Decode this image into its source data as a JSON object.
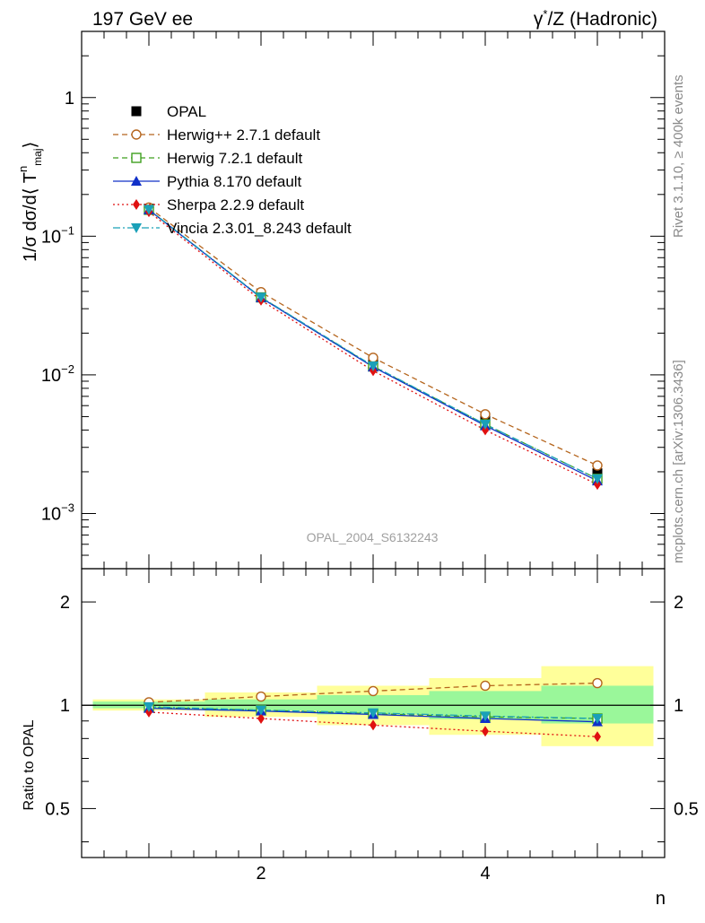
{
  "header": {
    "left": "197 GeV ee",
    "right_prefix": "γ",
    "right_sup": "*",
    "right_suffix": "/Z (Hadronic)"
  },
  "side_labels": {
    "rivet": "Rivet 3.1.10, ≥ 400k events",
    "mcplots": "mcplots.cern.ch [arXiv:1306.3436]"
  },
  "watermark": "OPAL_2004_S6132243",
  "chart_data": [
    {
      "type": "line",
      "panel": "main",
      "yscale": "log",
      "ylabel_main": "1/σ dσ/d⟨ T",
      "ylabel_sup": "n",
      "ylabel_sub": "maj",
      "ylabel_end": "⟩",
      "xlim": [
        0.4,
        5.6
      ],
      "ylim": [
        0.0004,
        3
      ],
      "ytick_labels": [
        {
          "value": 1,
          "base": "1",
          "exp": ""
        },
        {
          "value": 0.1,
          "base": "10",
          "exp": "−1"
        },
        {
          "value": 0.01,
          "base": "10",
          "exp": "−2"
        },
        {
          "value": 0.001,
          "base": "10",
          "exp": "−3"
        }
      ],
      "x": [
        1,
        2,
        3,
        4,
        5
      ],
      "data": {
        "name": "OPAL",
        "values": [
          0.158,
          0.0375,
          0.0122,
          0.0048,
          0.00195
        ],
        "errors": [
          0.003,
          0.0008,
          0.0003,
          0.00015,
          9e-05
        ]
      },
      "series": [
        {
          "name": "Herwig++ 2.7.1 default",
          "color": "#b5651d",
          "marker": "circle-open",
          "dash": "6,4",
          "values": [
            0.161,
            0.0395,
            0.0133,
            0.0052,
            0.00222
          ]
        },
        {
          "name": "Herwig 7.2.1 default",
          "color": "#3f9f1f",
          "marker": "square-open",
          "dash": "6,4",
          "values": [
            0.155,
            0.0362,
            0.0115,
            0.0044,
            0.00178
          ]
        },
        {
          "name": "Pythia 8.170 default",
          "color": "#1030c8",
          "marker": "triangle-up",
          "dash": "",
          "values": [
            0.155,
            0.036,
            0.0114,
            0.0043,
            0.00172
          ]
        },
        {
          "name": "Sherpa 2.2.9 default",
          "color": "#e01010",
          "marker": "diamond",
          "dash": "2,3",
          "values": [
            0.15,
            0.0345,
            0.0107,
            0.004,
            0.00162
          ]
        },
        {
          "name": "Vincia 2.3.01_8.243 default",
          "color": "#1aa0b8",
          "marker": "triangle-down",
          "dash": "8,3,2,3",
          "values": [
            0.156,
            0.0363,
            0.0116,
            0.0044,
            0.00178
          ]
        }
      ]
    },
    {
      "type": "line",
      "panel": "ratio",
      "yscale": "log",
      "ylabel": "Ratio to OPAL",
      "xlabel": "n",
      "xlim": [
        0.4,
        5.6
      ],
      "ylim": [
        0.36,
        2.5
      ],
      "ytick_labels": [
        {
          "value": 2,
          "label": "2"
        },
        {
          "value": 1,
          "label": "1"
        },
        {
          "value": 0.5,
          "label": "0.5"
        }
      ],
      "xtick_labels": [
        {
          "value": 2,
          "label": "2"
        },
        {
          "value": 4,
          "label": "4"
        }
      ],
      "x": [
        1,
        2,
        3,
        4,
        5
      ],
      "bands": {
        "inner": [
          [
            0.98,
            1.025
          ],
          [
            0.965,
            1.04
          ],
          [
            0.94,
            1.07
          ],
          [
            0.91,
            1.1
          ],
          [
            0.885,
            1.14
          ]
        ],
        "outer": [
          [
            0.965,
            1.04
          ],
          [
            0.925,
            1.09
          ],
          [
            0.875,
            1.14
          ],
          [
            0.82,
            1.2
          ],
          [
            0.76,
            1.3
          ]
        ]
      },
      "series": [
        {
          "name": "Herwig++ 2.7.1 default",
          "color": "#b5651d",
          "marker": "circle-open",
          "dash": "6,4",
          "values": [
            1.02,
            1.06,
            1.1,
            1.14,
            1.16
          ]
        },
        {
          "name": "Herwig 7.2.1 default",
          "color": "#3f9f1f",
          "marker": "square-open",
          "dash": "6,4",
          "values": [
            0.985,
            0.968,
            0.945,
            0.925,
            0.915
          ]
        },
        {
          "name": "Pythia 8.170 default",
          "color": "#1030c8",
          "marker": "triangle-up",
          "dash": "",
          "values": [
            0.98,
            0.962,
            0.94,
            0.915,
            0.895
          ]
        },
        {
          "name": "Sherpa 2.2.9 default",
          "color": "#e01010",
          "marker": "diamond",
          "dash": "2,3",
          "values": [
            0.955,
            0.915,
            0.875,
            0.84,
            0.81
          ]
        },
        {
          "name": "Vincia 2.3.01_8.243 default",
          "color": "#1aa0b8",
          "marker": "triangle-down",
          "dash": "8,3,2,3",
          "values": [
            0.99,
            0.968,
            0.95,
            0.93,
            0.915
          ]
        }
      ]
    }
  ]
}
